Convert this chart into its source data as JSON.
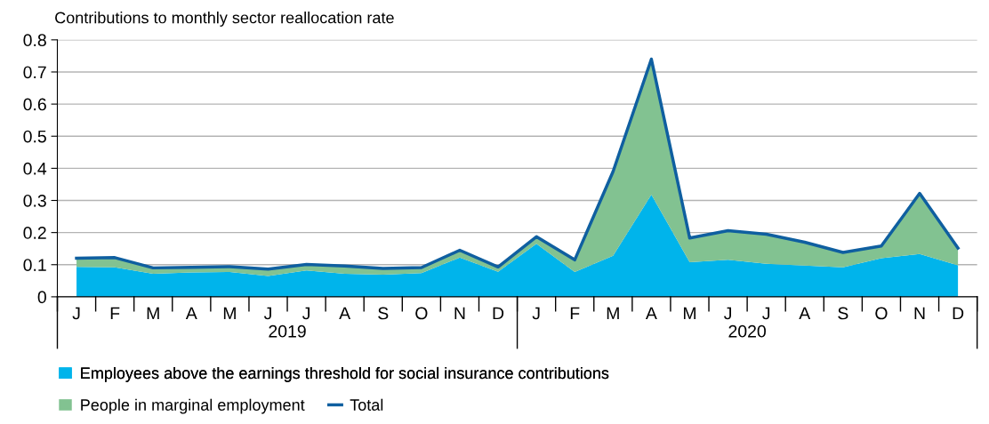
{
  "chart_data": {
    "type": "area",
    "title": "Contributions to monthly sector reallocation rate",
    "categories": [
      "J",
      "F",
      "M",
      "A",
      "M",
      "J",
      "J",
      "A",
      "S",
      "O",
      "N",
      "D",
      "J",
      "F",
      "M",
      "A",
      "M",
      "J",
      "J",
      "A",
      "S",
      "O",
      "N",
      "D"
    ],
    "stacked": true,
    "series": [
      {
        "name": "Employees above the earnings threshold for social insurance contributions",
        "color": "#00b4eb",
        "values": [
          0.093,
          0.092,
          0.072,
          0.076,
          0.077,
          0.065,
          0.082,
          0.072,
          0.069,
          0.074,
          0.122,
          0.078,
          0.165,
          0.077,
          0.128,
          0.318,
          0.108,
          0.115,
          0.103,
          0.097,
          0.092,
          0.12,
          0.133,
          0.098
        ]
      },
      {
        "name": "People in marginal employment",
        "color": "#82c291",
        "values": [
          0.027,
          0.03,
          0.018,
          0.016,
          0.017,
          0.021,
          0.019,
          0.024,
          0.019,
          0.017,
          0.023,
          0.015,
          0.022,
          0.038,
          0.262,
          0.422,
          0.075,
          0.091,
          0.092,
          0.073,
          0.046,
          0.038,
          0.189,
          0.054
        ]
      },
      {
        "name": "Total",
        "color": "#0f5fa0",
        "type": "line",
        "values": [
          0.12,
          0.122,
          0.09,
          0.092,
          0.094,
          0.086,
          0.101,
          0.096,
          0.088,
          0.091,
          0.145,
          0.093,
          0.187,
          0.115,
          0.39,
          0.74,
          0.183,
          0.206,
          0.195,
          0.17,
          0.138,
          0.158,
          0.322,
          0.152
        ]
      }
    ],
    "annotations": [
      "2019",
      "2020"
    ],
    "ylim": [
      0,
      0.8
    ],
    "yticks": [
      0,
      0.1,
      0.2,
      0.3,
      0.4,
      0.5,
      0.6,
      0.7,
      0.8
    ],
    "grid": "y",
    "legend": "bottom"
  }
}
